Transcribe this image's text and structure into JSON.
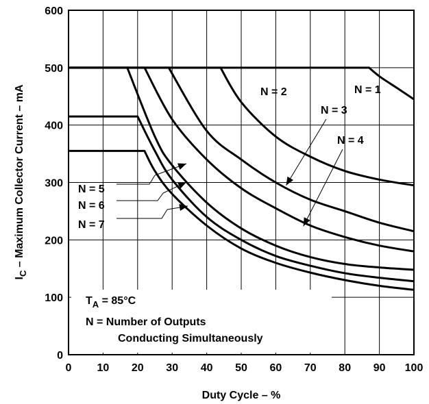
{
  "chart_data": {
    "type": "line",
    "title": "",
    "xlabel": "Duty Cycle – %",
    "ylabel_main": "I",
    "ylabel_sub": "C",
    "ylabel_rest": " – Maximum Collector Current – mA",
    "xlim": [
      0,
      100
    ],
    "ylim": [
      0,
      600
    ],
    "x_ticks": [
      0,
      10,
      20,
      30,
      40,
      50,
      60,
      70,
      80,
      90,
      100
    ],
    "y_ticks": [
      0,
      100,
      200,
      300,
      400,
      500,
      600
    ],
    "grid": true,
    "series": [
      {
        "name": "N = 1",
        "x": [
          0,
          87,
          90,
          95,
          100
        ],
        "y": [
          500,
          500,
          485,
          465,
          445
        ]
      },
      {
        "name": "N = 2",
        "x": [
          0,
          44,
          50,
          60,
          70,
          80,
          90,
          100
        ],
        "y": [
          500,
          500,
          440,
          380,
          345,
          320,
          305,
          295
        ]
      },
      {
        "name": "N = 3",
        "x": [
          0,
          29,
          40,
          50,
          60,
          70,
          80,
          90,
          100
        ],
        "y": [
          500,
          500,
          390,
          340,
          300,
          270,
          250,
          230,
          215
        ]
      },
      {
        "name": "N = 4",
        "x": [
          0,
          22,
          30,
          40,
          50,
          60,
          70,
          80,
          90,
          100
        ],
        "y": [
          500,
          500,
          410,
          340,
          290,
          255,
          225,
          205,
          190,
          180
        ]
      },
      {
        "name": "N = 5",
        "x": [
          0,
          17,
          25,
          30,
          40,
          50,
          60,
          70,
          80,
          90,
          100
        ],
        "y": [
          500,
          500,
          380,
          330,
          265,
          220,
          190,
          170,
          158,
          152,
          148
        ]
      },
      {
        "name": "N = 6",
        "x": [
          0,
          20,
          25,
          30,
          40,
          50,
          60,
          70,
          80,
          90,
          100
        ],
        "y": [
          415,
          415,
          355,
          305,
          240,
          200,
          172,
          155,
          142,
          134,
          128
        ]
      },
      {
        "name": "N = 7",
        "x": [
          0,
          22,
          25,
          30,
          40,
          50,
          60,
          70,
          80,
          90,
          100
        ],
        "y": [
          355,
          355,
          320,
          280,
          225,
          185,
          160,
          143,
          130,
          120,
          113
        ]
      }
    ],
    "annotations": {
      "ta_main": "T",
      "ta_sub": "A",
      "ta_rest": " = 85°C",
      "n_line1": "N = Number of Outputs",
      "n_line2": "Conducting Simultaneously"
    }
  }
}
